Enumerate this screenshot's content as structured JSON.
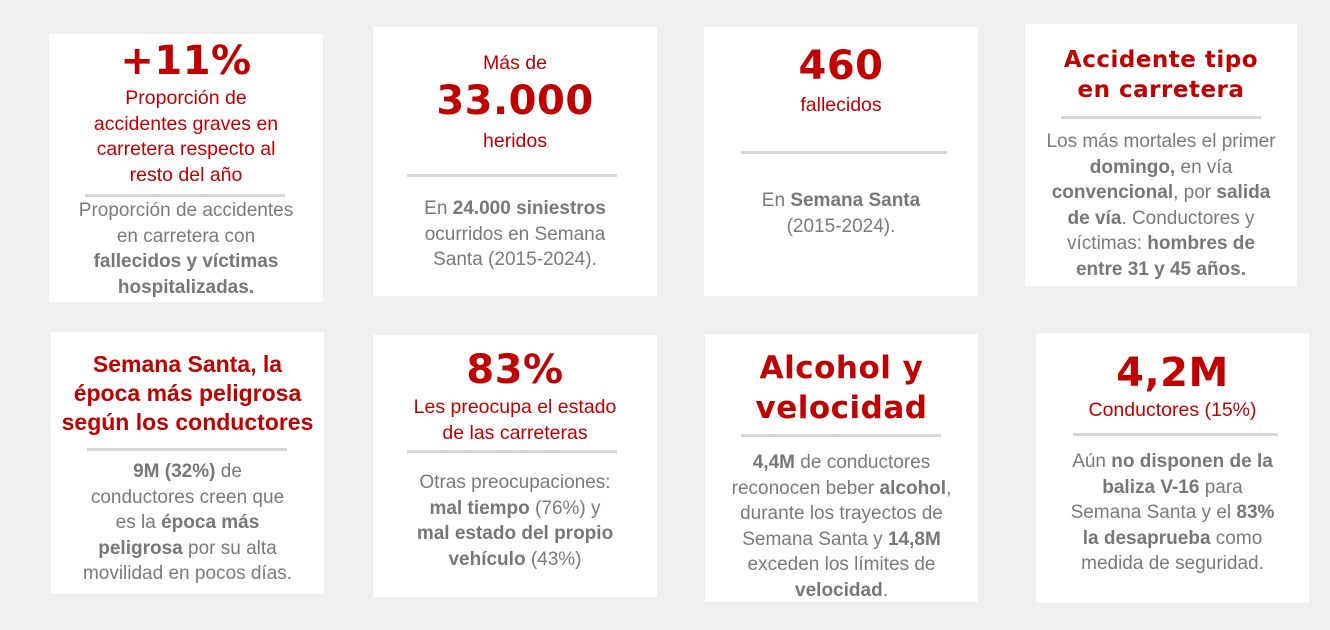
{
  "cards": {
    "c1": {
      "big": "+11%",
      "sub": [
        "Proporción de",
        "accidentes graves en",
        "carretera respecto al",
        "resto del año"
      ],
      "desc": [
        "Proporción de accidentes",
        "en carretera con",
        "fallecidos y víctimas",
        "hospitalizadas."
      ]
    },
    "c2": {
      "pre": "Más de",
      "big": "33.000",
      "sub": "heridos",
      "d1a": "En ",
      "d1b": "24.000 siniestros",
      "d2": "ocurridos en Semana",
      "d3": "Santa (2015-2024)."
    },
    "c3": {
      "big": "460",
      "sub": "fallecidos",
      "d1a": "En ",
      "d1b": "Semana Santa",
      "d2": "(2015-2024)."
    },
    "c4": {
      "big1": "Accidente tipo",
      "big2": "en carretera",
      "d1": "Los más mortales el primer",
      "d2a": "domingo,",
      "d2b": " en vía",
      "d3a": "convencional",
      "d3b": ", por ",
      "d3c": "salida",
      "d4a": "de vía",
      "d4b": ". Conductores y",
      "d5a": "víctimas: ",
      "d5b": "hombres de",
      "d6": "entre 31 y 45 años."
    },
    "c5": {
      "title": [
        "Semana Santa, la",
        "época más peligrosa",
        "según los conductores"
      ],
      "d1a": "9M (32%)",
      "d1b": " de",
      "d2": "conductores creen que",
      "d3a": "es la ",
      "d3b": "época más",
      "d4a": "peligrosa",
      "d4b": " por su alta",
      "d5": "movilidad en pocos días."
    },
    "c6": {
      "big": "83%",
      "sub": [
        "Les preocupa el estado",
        "de las carreteras"
      ],
      "d1": "Otras preocupaciones:",
      "d2a": "mal tiempo",
      "d2b": " (76%) y",
      "d3": "mal estado del propio",
      "d4a": "vehículo",
      "d4b": " (43%)"
    },
    "c7": {
      "big1": "Alcohol y",
      "big2": "velocidad",
      "d1a": "4,4M",
      "d1b": " de conductores",
      "d2a": "reconocen beber ",
      "d2b": "alcohol",
      "d2c": ",",
      "d3": "durante los trayectos de",
      "d4a": "Semana Santa y ",
      "d4b": "14,8M",
      "d5": "exceden los límites de",
      "d6a": "velocidad",
      "d6b": "."
    },
    "c8": {
      "big": "4,2M",
      "sub": "Conductores (15%)",
      "d1a": "Aún ",
      "d1b": "no disponen de la",
      "d2a": "baliza V-16",
      "d2b": " para",
      "d3a": "Semana Santa y el ",
      "d3b": "83%",
      "d4a": "la desaprueba",
      "d4b": " como",
      "d5": "medida de seguridad."
    }
  },
  "colors": {
    "accent": "#c00000",
    "text": "#7a7a7a",
    "divider": "#d6d6d6",
    "background": "#f0f0f0"
  }
}
